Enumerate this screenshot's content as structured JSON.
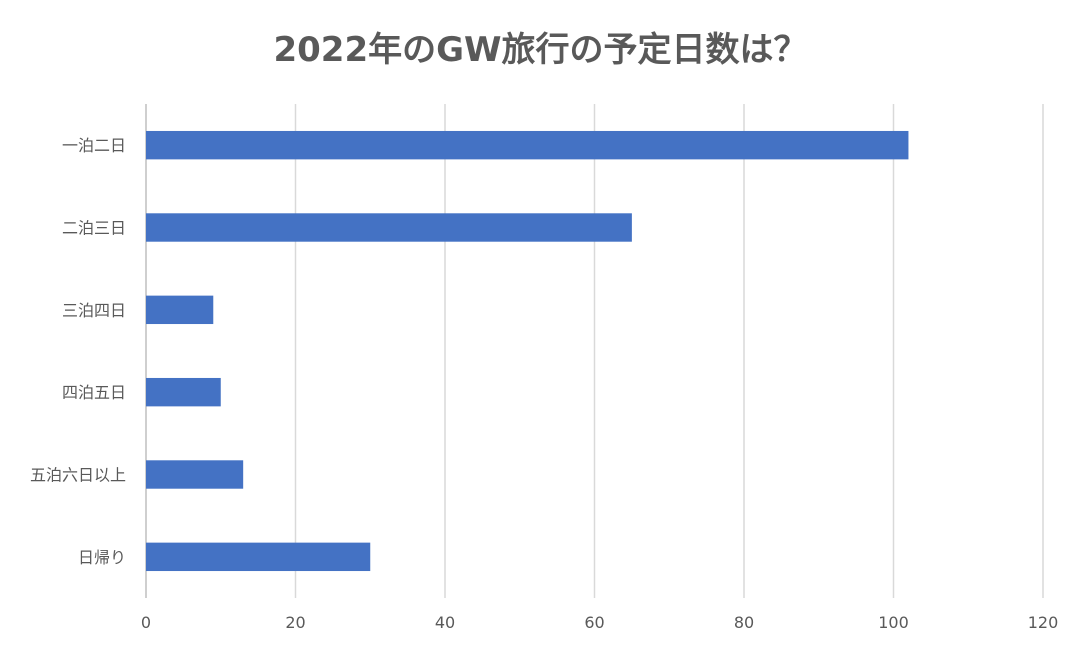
{
  "chart_data": {
    "type": "bar",
    "orientation": "horizontal",
    "title": "2022年のGW旅行の予定日数は？",
    "categories": [
      "一泊二日",
      "二泊三日",
      "三泊四日",
      "四泊五日",
      "五泊六日以上",
      "日帰り"
    ],
    "values": [
      102,
      65,
      9,
      10,
      13,
      30
    ],
    "xlim": [
      0,
      120
    ],
    "xticks": [
      0,
      20,
      40,
      60,
      80,
      100,
      120
    ],
    "grid": true,
    "legend": "none",
    "bar_color": "#4472c4"
  }
}
